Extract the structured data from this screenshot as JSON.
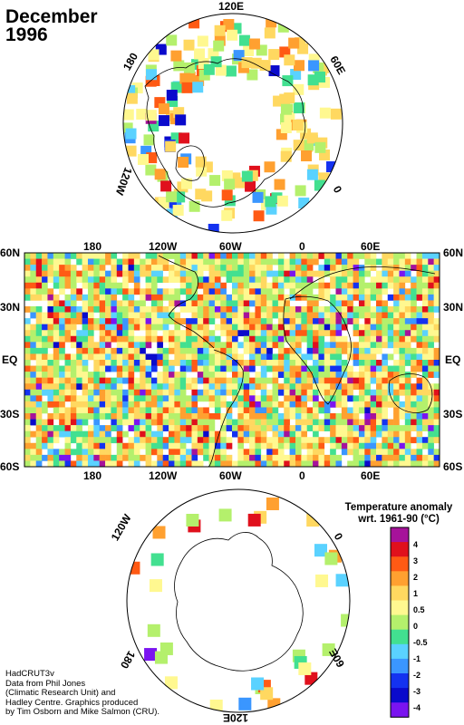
{
  "title": {
    "line1": "December",
    "line2": "1996"
  },
  "north_polar": {
    "labels": {
      "top": "120E",
      "right": "60E",
      "right_low": "0",
      "left": "180",
      "left_low": "120W"
    }
  },
  "global_map": {
    "top_lon_labels": [
      "180",
      "120W",
      "60W",
      "0",
      "60E"
    ],
    "bottom_lon_labels": [
      "180",
      "120W",
      "60W",
      "0",
      "60E"
    ],
    "lat_labels": [
      "60N",
      "30N",
      "EQ",
      "30S",
      "60S"
    ]
  },
  "south_polar": {
    "labels": {
      "upper_left": "120W",
      "upper_right": "0",
      "lower_left": "180",
      "lower_right": "60E",
      "bottom": "120E"
    }
  },
  "legend": {
    "title_line1": "Temperature anomaly",
    "title_line2": "wrt. 1961-90  (°C)",
    "levels": [
      "4",
      "3",
      "2",
      "1",
      "0.5",
      "0",
      "-0.5",
      "-1",
      "-2",
      "-3",
      "-4"
    ],
    "colors": [
      "#a6129a",
      "#e0101c",
      "#ff5a14",
      "#ffa030",
      "#ffd860",
      "#fff890",
      "#b4f06c",
      "#42e090",
      "#5ad2ff",
      "#3a96ff",
      "#1432f0",
      "#0a0acc",
      "#7a14f0"
    ]
  },
  "credits": [
    "HadCRUT3v",
    "Data from Phil Jones",
    "(Climatic Research Unit) and",
    "Hadley Centre.  Graphics produced",
    "by Tim Osborn and Mike Salmon (CRU)."
  ]
}
